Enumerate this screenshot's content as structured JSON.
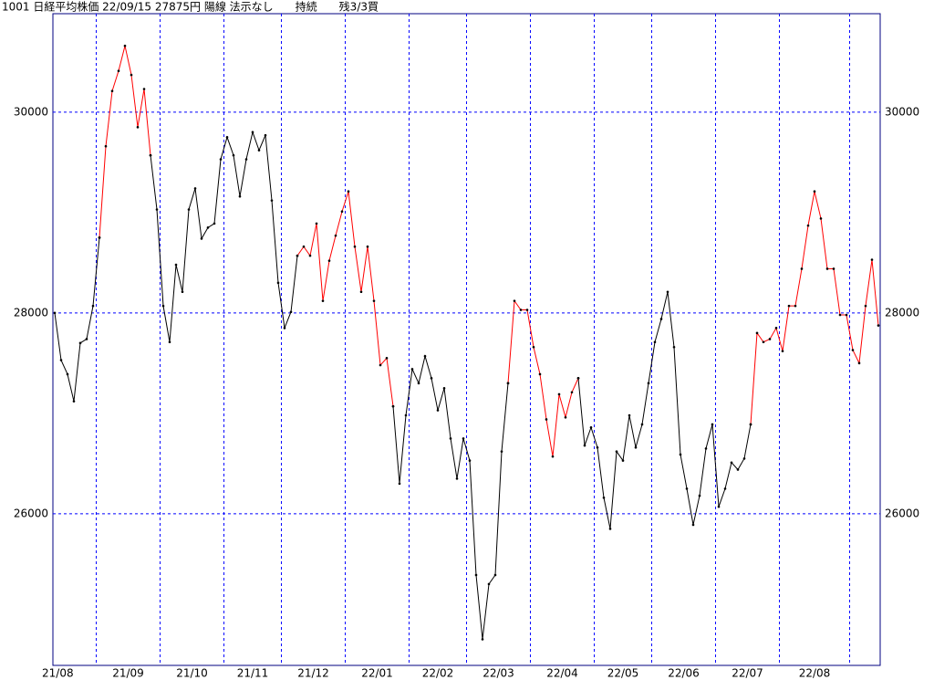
{
  "chart_data": {
    "type": "line",
    "title": "1001 日経平均株価 22/09/15 27875円 陽線 法示なし　　持続　　残3/3買",
    "categories": [
      "21/08",
      null,
      null,
      null,
      null,
      null,
      null,
      "21/09",
      null,
      null,
      null,
      null,
      null,
      null,
      null,
      null,
      null,
      "21/10",
      null,
      null,
      null,
      null,
      null,
      null,
      null,
      null,
      null,
      "21/11",
      null,
      null,
      null,
      null,
      null,
      null,
      null,
      null,
      "21/12",
      null,
      null,
      null,
      null,
      null,
      null,
      null,
      null,
      null,
      "22/01",
      null,
      null,
      null,
      null,
      null,
      null,
      null,
      null,
      null,
      "22/02",
      null,
      null,
      null,
      null,
      null,
      null,
      null,
      null,
      "22/03",
      null,
      null,
      null,
      null,
      null,
      null,
      null,
      null,
      null,
      "22/04",
      null,
      null,
      null,
      null,
      null,
      null,
      null,
      null,
      null,
      "22/05",
      null,
      null,
      null,
      null,
      null,
      null,
      null,
      null,
      "22/06",
      null,
      null,
      null,
      null,
      null,
      null,
      null,
      null,
      null,
      "22/07",
      null,
      null,
      null,
      null,
      null,
      null,
      null,
      null,
      null,
      "22/08",
      null,
      null,
      null,
      null,
      null,
      null,
      null,
      null,
      null,
      null,
      null,
      null,
      null,
      null,
      null
    ],
    "series": [
      {
        "color": "#000000",
        "values": [
          28000,
          27530,
          27390,
          27120,
          27700,
          27740,
          28070,
          28750,
          null,
          null,
          null,
          null,
          null,
          null,
          null,
          29570,
          29030,
          28070,
          27710,
          28480,
          28210,
          29030,
          29240,
          28740,
          28850,
          28890,
          29530,
          29750,
          29570,
          29160,
          29530,
          29800,
          29620,
          29770,
          29120,
          28300,
          27850,
          28010,
          28570,
          null,
          null,
          null,
          null,
          null,
          null,
          null,
          null,
          null,
          null,
          null,
          null,
          null,
          null,
          27070,
          26300,
          26980,
          27440,
          27300,
          27570,
          27350,
          27030,
          27250,
          26750,
          26350,
          26750,
          26530,
          25390,
          24750,
          25300,
          25390,
          26620,
          27300,
          null,
          null,
          null,
          null,
          null,
          null,
          null,
          null,
          null,
          null,
          27350,
          26680,
          26860,
          26660,
          26160,
          25850,
          26620,
          26530,
          26980,
          26660,
          26890,
          27300,
          27710,
          27940,
          28210,
          27660,
          26590,
          26250,
          25890,
          26180,
          26650,
          26890,
          26070,
          26250,
          26510,
          26440,
          26550,
          26890,
          null,
          null,
          null,
          null,
          null,
          null,
          null,
          null,
          null,
          null,
          null,
          null,
          null,
          null,
          null,
          null,
          null,
          null,
          null,
          null
        ]
      },
      {
        "color": "#ff0000",
        "values": [
          null,
          null,
          null,
          null,
          null,
          null,
          null,
          28750,
          29660,
          30210,
          30410,
          30660,
          30370,
          29850,
          30230,
          29570,
          null,
          null,
          null,
          null,
          null,
          null,
          null,
          null,
          null,
          null,
          null,
          null,
          null,
          null,
          null,
          null,
          null,
          null,
          null,
          null,
          null,
          null,
          28570,
          28660,
          28570,
          28890,
          28120,
          28520,
          28770,
          29010,
          29210,
          28660,
          28210,
          28660,
          28120,
          27480,
          27550,
          27070,
          null,
          null,
          null,
          null,
          null,
          null,
          null,
          null,
          null,
          null,
          null,
          null,
          null,
          null,
          null,
          null,
          null,
          27300,
          28120,
          28030,
          28030,
          27660,
          27390,
          26940,
          26570,
          27190,
          26960,
          27210,
          27350,
          null,
          null,
          null,
          null,
          null,
          null,
          null,
          null,
          null,
          null,
          null,
          null,
          null,
          null,
          null,
          null,
          null,
          null,
          null,
          null,
          null,
          null,
          null,
          null,
          null,
          null,
          26890,
          27800,
          27710,
          27740,
          27850,
          27620,
          28070,
          28070,
          28440,
          28870,
          29210,
          28940,
          28440,
          28440,
          27980,
          27980,
          27630,
          27500,
          28070,
          28530,
          27875
        ]
      }
    ],
    "marker_color": "#000000",
    "ylim": [
      24490,
      30980
    ],
    "yticks": [
      26000,
      28000,
      30000
    ],
    "grid": true,
    "grid_color": "#0000ff"
  }
}
